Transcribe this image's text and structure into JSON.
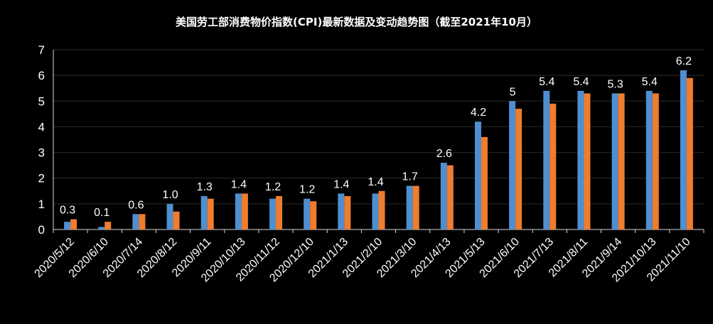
{
  "chart_data": {
    "type": "bar",
    "title": "美国劳工部消费物价指数(CPI)最新数据及变动趋势图（截至2021年10月）",
    "categories": [
      "2020/5/12",
      "2020/6/10",
      "2020/7/14",
      "2020/8/12",
      "2020/9/11",
      "2020/10/13",
      "2020/11/12",
      "2020/12/10",
      "2021/1/13",
      "2021/2/10",
      "2021/3/10",
      "2021/4/13",
      "2021/5/13",
      "2021/6/10",
      "2021/7/13",
      "2021/8/11",
      "2021/9/14",
      "2021/10/13",
      "2021/11/10"
    ],
    "series": [
      {
        "values": [
          0.3,
          0.1,
          0.6,
          1.0,
          1.3,
          1.4,
          1.2,
          1.2,
          1.4,
          1.4,
          1.7,
          2.6,
          4.2,
          5,
          5.4,
          5.4,
          5.3,
          5.4,
          6.2
        ]
      },
      {
        "values": [
          0.4,
          0.3,
          0.6,
          0.7,
          1.2,
          1.4,
          1.3,
          1.1,
          1.3,
          1.5,
          1.7,
          2.5,
          3.6,
          4.7,
          4.9,
          5.3,
          5.3,
          5.3,
          5.9
        ]
      }
    ],
    "data_labels": [
      "0.3",
      "0.1",
      "0.6",
      "1.0",
      "1.3",
      "1.4",
      "1.2",
      "1.2",
      "1.4",
      "1.4",
      "1.7",
      "2.6",
      "4.2",
      "5",
      "5.4",
      "5.4",
      "5.3",
      "5.4",
      "6.2"
    ],
    "y_ticks": [
      "0",
      "1",
      "2",
      "3",
      "4",
      "5",
      "6",
      "7"
    ],
    "ylim": [
      0,
      7
    ],
    "grid": true,
    "legend": "none",
    "colors": {
      "series1": "#4f8fd0",
      "series2": "#f07c2e",
      "background": "#000000",
      "grid": "#2a2a2a",
      "axis": "#d9d9d9",
      "text": "#ffffff"
    }
  }
}
